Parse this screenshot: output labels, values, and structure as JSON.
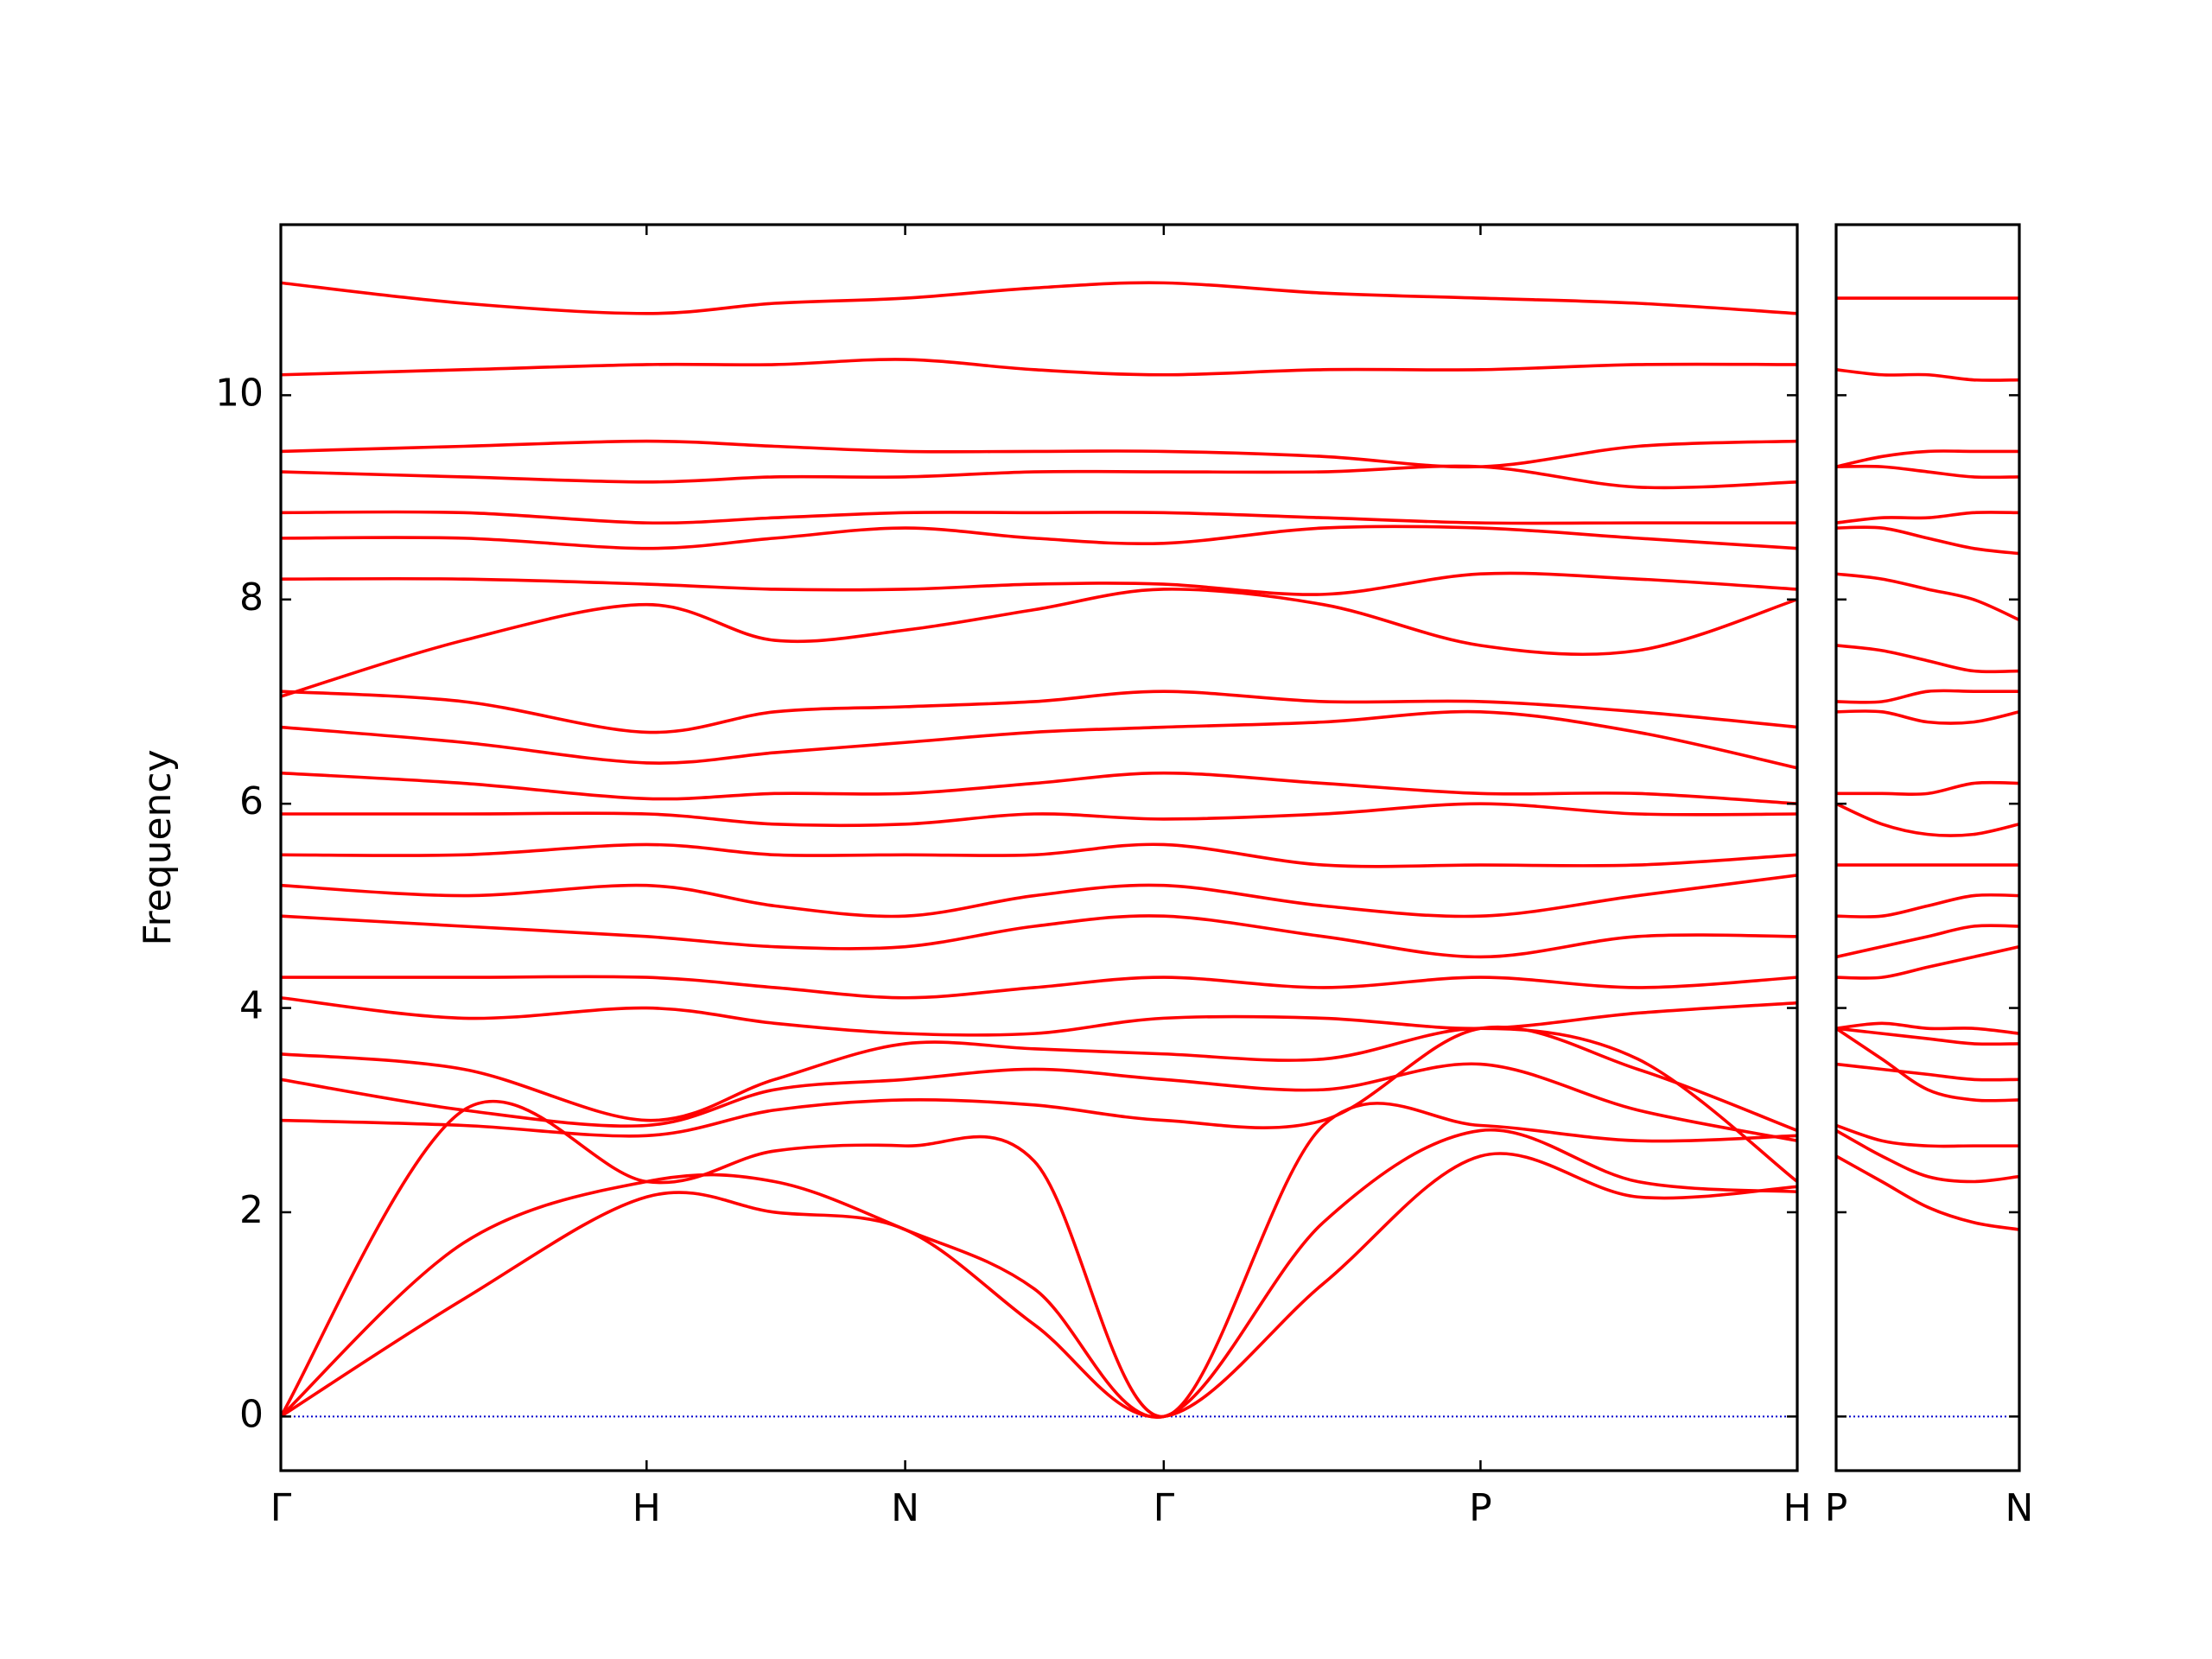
{
  "chart_data": [
    {
      "type": "line",
      "ylabel": "Frequency",
      "color": "#ff0000",
      "x": [
        0,
        0.5,
        1,
        1.35,
        1.707,
        2.06,
        2.414,
        2.85,
        3.28,
        3.71,
        4.146
      ],
      "xlim": [
        0,
        4.146
      ],
      "xticks": [
        {
          "value": 0,
          "label": "Γ"
        },
        {
          "value": 1,
          "label": "H"
        },
        {
          "value": 1.707,
          "label": "N"
        },
        {
          "value": 2.414,
          "label": "Γ"
        },
        {
          "value": 3.28,
          "label": "P"
        },
        {
          "value": 4.146,
          "label": "H"
        }
      ],
      "ylim": [
        -0.53,
        11.67
      ],
      "yticks": [
        0,
        2,
        4,
        6,
        8,
        10
      ],
      "hline": {
        "y": 0,
        "color": "#0000cc"
      },
      "series": [
        {
          "values": [
            0,
            1.15,
            2.15,
            2.0,
            1.83,
            0.9,
            0,
            1.3,
            2.55,
            2.15,
            2.25
          ]
        },
        {
          "values": [
            0,
            1.7,
            2.3,
            2.3,
            1.83,
            1.25,
            0,
            1.9,
            2.8,
            2.3,
            2.2
          ]
        },
        {
          "values": [
            0,
            3.0,
            2.3,
            2.6,
            2.65,
            2.5,
            0,
            2.85,
            2.85,
            2.7,
            2.75
          ]
        },
        {
          "values": [
            2.9,
            2.85,
            2.75,
            3.0,
            3.1,
            3.05,
            2.9,
            2.9,
            3.8,
            3.4,
            2.8
          ]
        },
        {
          "values": [
            3.3,
            3.0,
            2.85,
            3.2,
            3.3,
            3.4,
            3.3,
            3.2,
            3.45,
            3.0,
            2.7
          ]
        },
        {
          "values": [
            3.55,
            3.4,
            2.9,
            3.3,
            3.65,
            3.6,
            3.55,
            3.5,
            3.8,
            3.5,
            2.3
          ]
        },
        {
          "values": [
            4.1,
            3.9,
            4.0,
            3.85,
            3.75,
            3.75,
            3.9,
            3.9,
            3.8,
            3.95,
            4.05
          ]
        },
        {
          "values": [
            4.3,
            4.3,
            4.3,
            4.2,
            4.1,
            4.2,
            4.3,
            4.2,
            4.3,
            4.2,
            4.3
          ]
        },
        {
          "values": [
            4.9,
            4.8,
            4.7,
            4.6,
            4.6,
            4.8,
            4.9,
            4.7,
            4.5,
            4.7,
            4.7
          ]
        },
        {
          "values": [
            5.2,
            5.1,
            5.2,
            5.0,
            4.9,
            5.1,
            5.2,
            5.0,
            4.9,
            5.1,
            5.3
          ]
        },
        {
          "values": [
            5.5,
            5.5,
            5.6,
            5.5,
            5.5,
            5.5,
            5.6,
            5.4,
            5.4,
            5.4,
            5.5
          ]
        },
        {
          "values": [
            5.9,
            5.9,
            5.9,
            5.8,
            5.8,
            5.9,
            5.85,
            5.9,
            6.0,
            5.9,
            5.9
          ]
        },
        {
          "values": [
            6.3,
            6.2,
            6.05,
            6.1,
            6.1,
            6.2,
            6.3,
            6.2,
            6.1,
            6.1,
            6.0
          ]
        },
        {
          "values": [
            6.75,
            6.6,
            6.4,
            6.5,
            6.6,
            6.7,
            6.75,
            6.8,
            6.9,
            6.7,
            6.35
          ]
        },
        {
          "values": [
            7.1,
            7.0,
            6.7,
            6.9,
            6.95,
            7.0,
            7.1,
            7.0,
            7.0,
            6.9,
            6.75
          ]
        },
        {
          "values": [
            7.05,
            7.6,
            7.95,
            7.6,
            7.7,
            7.9,
            8.1,
            7.95,
            7.55,
            7.5,
            8.0
          ]
        },
        {
          "values": [
            8.2,
            8.2,
            8.15,
            8.1,
            8.1,
            8.15,
            8.15,
            8.05,
            8.25,
            8.2,
            8.1
          ]
        },
        {
          "values": [
            8.6,
            8.6,
            8.5,
            8.6,
            8.7,
            8.6,
            8.55,
            8.7,
            8.7,
            8.6,
            8.5
          ]
        },
        {
          "values": [
            8.85,
            8.85,
            8.75,
            8.8,
            8.85,
            8.85,
            8.85,
            8.8,
            8.75,
            8.75,
            8.75
          ]
        },
        {
          "values": [
            9.25,
            9.2,
            9.15,
            9.2,
            9.2,
            9.25,
            9.25,
            9.25,
            9.3,
            9.1,
            9.15
          ]
        },
        {
          "values": [
            9.45,
            9.5,
            9.55,
            9.5,
            9.45,
            9.45,
            9.45,
            9.4,
            9.3,
            9.5,
            9.55
          ]
        },
        {
          "values": [
            10.2,
            10.25,
            10.3,
            10.3,
            10.35,
            10.25,
            10.2,
            10.25,
            10.25,
            10.3,
            10.3
          ]
        },
        {
          "values": [
            11.1,
            10.9,
            10.8,
            10.9,
            10.95,
            11.05,
            11.1,
            11.0,
            10.95,
            10.9,
            10.8
          ]
        }
      ]
    },
    {
      "type": "line",
      "color": "#ff0000",
      "x": [
        0,
        0.125,
        0.25,
        0.375,
        0.5
      ],
      "xlim": [
        0,
        0.5
      ],
      "xticks": [
        {
          "value": 0,
          "label": "P"
        },
        {
          "value": 0.5,
          "label": "N"
        }
      ],
      "ylim": [
        -0.53,
        11.67
      ],
      "yticks": [
        0,
        2,
        4,
        6,
        8,
        10
      ],
      "hline": {
        "y": 0,
        "color": "#0000cc"
      },
      "series": [
        {
          "values": [
            2.55,
            2.3,
            2.05,
            1.9,
            1.83
          ]
        },
        {
          "values": [
            2.8,
            2.55,
            2.35,
            2.3,
            2.35
          ]
        },
        {
          "values": [
            2.85,
            2.7,
            2.65,
            2.65,
            2.65
          ]
        },
        {
          "values": [
            3.8,
            3.5,
            3.2,
            3.1,
            3.1
          ]
        },
        {
          "values": [
            3.45,
            3.4,
            3.35,
            3.3,
            3.3
          ]
        },
        {
          "values": [
            3.8,
            3.75,
            3.7,
            3.65,
            3.65
          ]
        },
        {
          "values": [
            3.8,
            3.85,
            3.8,
            3.8,
            3.75
          ]
        },
        {
          "values": [
            4.3,
            4.3,
            4.4,
            4.5,
            4.6
          ]
        },
        {
          "values": [
            4.5,
            4.6,
            4.7,
            4.8,
            4.8
          ]
        },
        {
          "values": [
            4.9,
            4.9,
            5.0,
            5.1,
            5.1
          ]
        },
        {
          "values": [
            5.4,
            5.4,
            5.4,
            5.4,
            5.4
          ]
        },
        {
          "values": [
            6.0,
            5.8,
            5.7,
            5.7,
            5.8
          ]
        },
        {
          "values": [
            6.1,
            6.1,
            6.1,
            6.2,
            6.2
          ]
        },
        {
          "values": [
            6.9,
            6.9,
            6.8,
            6.8,
            6.9
          ]
        },
        {
          "values": [
            7.0,
            7.0,
            7.1,
            7.1,
            7.1
          ]
        },
        {
          "values": [
            7.55,
            7.5,
            7.4,
            7.3,
            7.3
          ]
        },
        {
          "values": [
            8.25,
            8.2,
            8.1,
            8.0,
            7.8
          ]
        },
        {
          "values": [
            8.7,
            8.7,
            8.6,
            8.5,
            8.45
          ]
        },
        {
          "values": [
            8.75,
            8.8,
            8.8,
            8.85,
            8.85
          ]
        },
        {
          "values": [
            9.3,
            9.3,
            9.25,
            9.2,
            9.2
          ]
        },
        {
          "values": [
            9.3,
            9.4,
            9.45,
            9.45,
            9.45
          ]
        },
        {
          "values": [
            10.25,
            10.2,
            10.2,
            10.15,
            10.15
          ]
        },
        {
          "values": [
            10.95,
            10.95,
            10.95,
            10.95,
            10.95
          ]
        }
      ]
    }
  ]
}
